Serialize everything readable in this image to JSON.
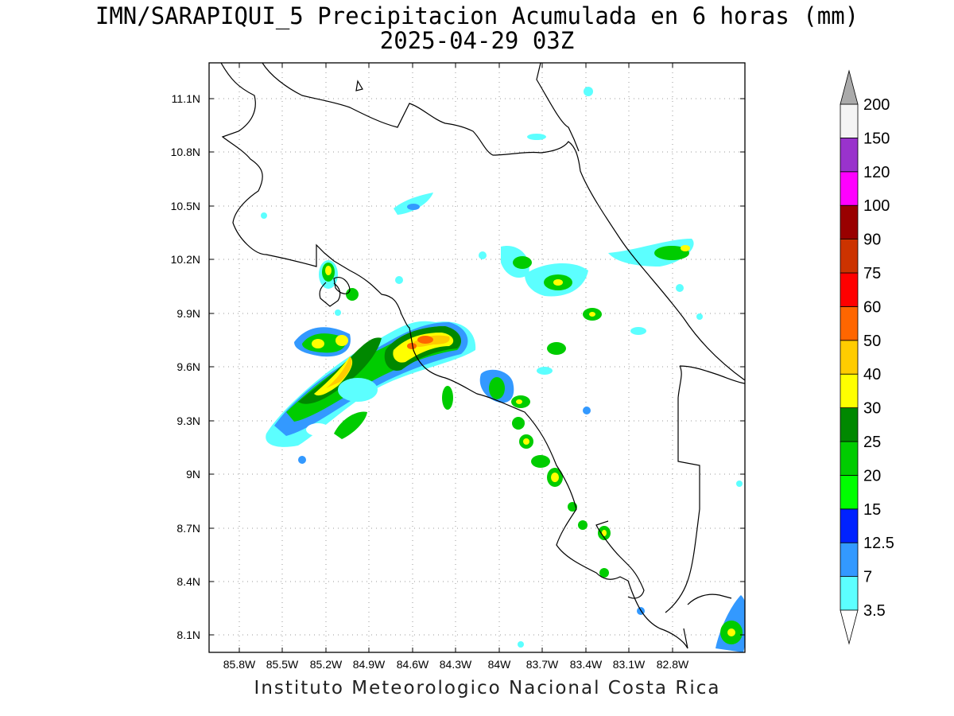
{
  "title": {
    "line1": "IMN/SARAPIQUI_5 Precipitacion Acumulada en 6 horas (mm)",
    "line2": "2025-04-29 03Z"
  },
  "footer": "Instituto Meteorologico Nacional Costa Rica",
  "map": {
    "lon_range": [
      -86.0,
      -83.0
    ],
    "lat_range": [
      8.0,
      11.2
    ],
    "lon_ticks": [
      "85.8W",
      "85.5W",
      "85.2W",
      "84.9W",
      "84.6W",
      "84.3W",
      "84W",
      "83.7W",
      "83.4W",
      "83.1W",
      "82.8W"
    ],
    "lat_ticks": [
      "11.1N",
      "10.8N",
      "10.5N",
      "10.2N",
      "9.9N",
      "9.6N",
      "9.3N",
      "9N",
      "8.7N",
      "8.4N",
      "8.1N"
    ],
    "gridlines": "dotted"
  },
  "colorbar": {
    "levels": [
      "3.5",
      "7",
      "12.5",
      "15",
      "20",
      "25",
      "30",
      "40",
      "50",
      "60",
      "75",
      "90",
      "100",
      "120",
      "150",
      "200"
    ],
    "colors": [
      "#5cffff",
      "#3399ff",
      "#0022ff",
      "#00ff00",
      "#00cc00",
      "#008800",
      "#ffff00",
      "#ffcc00",
      "#ff6600",
      "#ff0000",
      "#cc3300",
      "#990000",
      "#ff00ff",
      "#9933cc",
      "#f4f4f4"
    ],
    "over_color": "#aaaaaa",
    "under_color": "#ffffff"
  }
}
